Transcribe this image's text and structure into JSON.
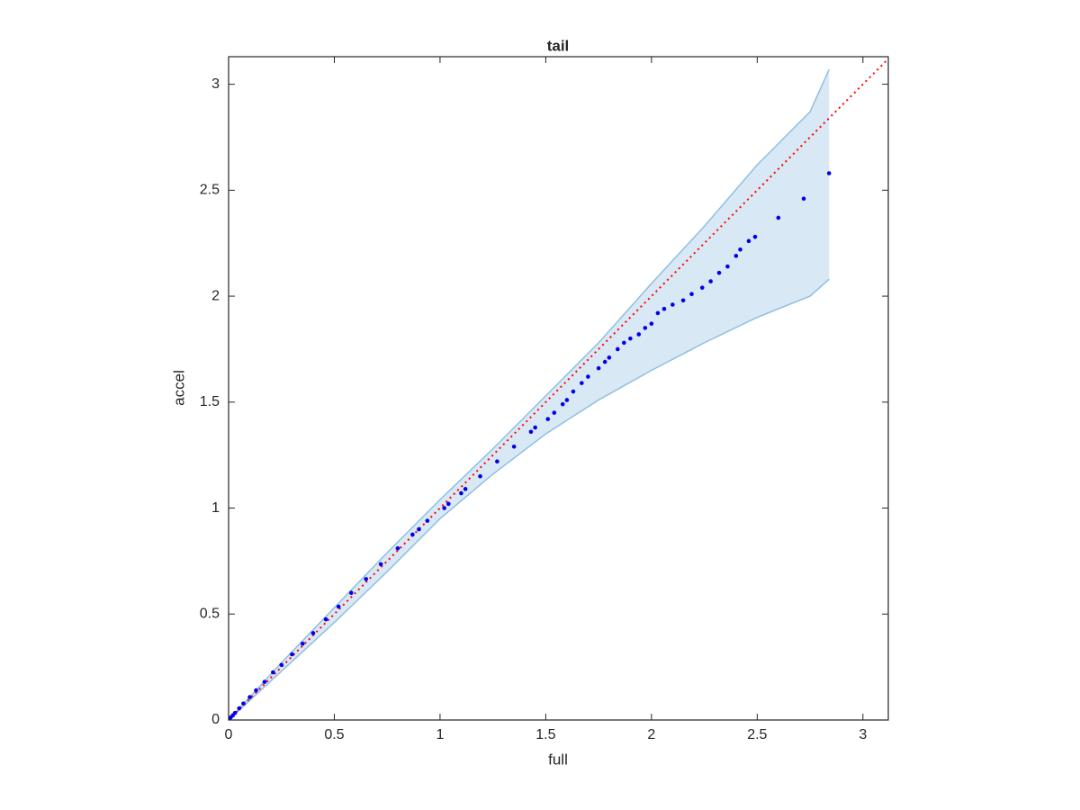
{
  "chart_data": {
    "type": "scatter",
    "title": "tail",
    "x_label": "full",
    "y_label": "accel",
    "xlim": [
      0,
      3.12
    ],
    "ylim": [
      0,
      3.13
    ],
    "xticks": [
      0,
      0.5,
      1,
      1.5,
      2,
      2.5,
      3
    ],
    "yticks": [
      0,
      0.5,
      1,
      1.5,
      2,
      2.5,
      3
    ],
    "box": true,
    "series": [
      {
        "kind": "band",
        "color": "#d9e8f5",
        "edge_color": "#8fbfe2",
        "x": [
          0,
          0.25,
          0.5,
          0.75,
          1,
          1.25,
          1.5,
          1.75,
          2,
          2.25,
          2.5,
          2.75,
          2.84
        ],
        "upper": [
          0,
          0.27,
          0.53,
          0.79,
          1.04,
          1.28,
          1.53,
          1.78,
          2.06,
          2.33,
          2.62,
          2.87,
          3.07
        ],
        "lower": [
          0,
          0.23,
          0.46,
          0.7,
          0.95,
          1.16,
          1.35,
          1.51,
          1.65,
          1.78,
          1.9,
          2.0,
          2.08
        ]
      },
      {
        "kind": "line",
        "color": "#ff0000",
        "dotted": true,
        "x": [
          0,
          3.13
        ],
        "values": [
          0,
          3.13
        ]
      },
      {
        "kind": "points",
        "color": "#0000ee",
        "x": [
          0.005,
          0.01,
          0.02,
          0.03,
          0.05,
          0.07,
          0.1,
          0.13,
          0.17,
          0.21,
          0.25,
          0.3,
          0.35,
          0.4,
          0.46,
          0.52,
          0.58,
          0.65,
          0.72,
          0.8,
          0.87,
          0.9,
          0.94,
          1.02,
          1.04,
          1.1,
          1.12,
          1.19,
          1.27,
          1.35,
          1.43,
          1.45,
          1.51,
          1.54,
          1.58,
          1.6,
          1.63,
          1.67,
          1.7,
          1.75,
          1.78,
          1.8,
          1.84,
          1.87,
          1.9,
          1.94,
          1.97,
          2.0,
          2.03,
          2.06,
          2.1,
          2.15,
          2.19,
          2.24,
          2.28,
          2.32,
          2.36,
          2.4,
          2.42,
          2.46,
          2.49,
          2.6,
          2.72,
          2.84
        ],
        "values": [
          0.005,
          0.012,
          0.022,
          0.033,
          0.055,
          0.078,
          0.108,
          0.14,
          0.18,
          0.225,
          0.26,
          0.31,
          0.36,
          0.41,
          0.475,
          0.535,
          0.6,
          0.665,
          0.735,
          0.81,
          0.875,
          0.9,
          0.94,
          1.0,
          1.02,
          1.07,
          1.09,
          1.15,
          1.22,
          1.29,
          1.36,
          1.38,
          1.42,
          1.45,
          1.49,
          1.51,
          1.55,
          1.59,
          1.62,
          1.66,
          1.69,
          1.71,
          1.75,
          1.78,
          1.8,
          1.82,
          1.85,
          1.87,
          1.92,
          1.94,
          1.96,
          1.98,
          2.01,
          2.04,
          2.07,
          2.11,
          2.14,
          2.19,
          2.22,
          2.26,
          2.28,
          2.37,
          2.46,
          2.58
        ]
      }
    ]
  }
}
